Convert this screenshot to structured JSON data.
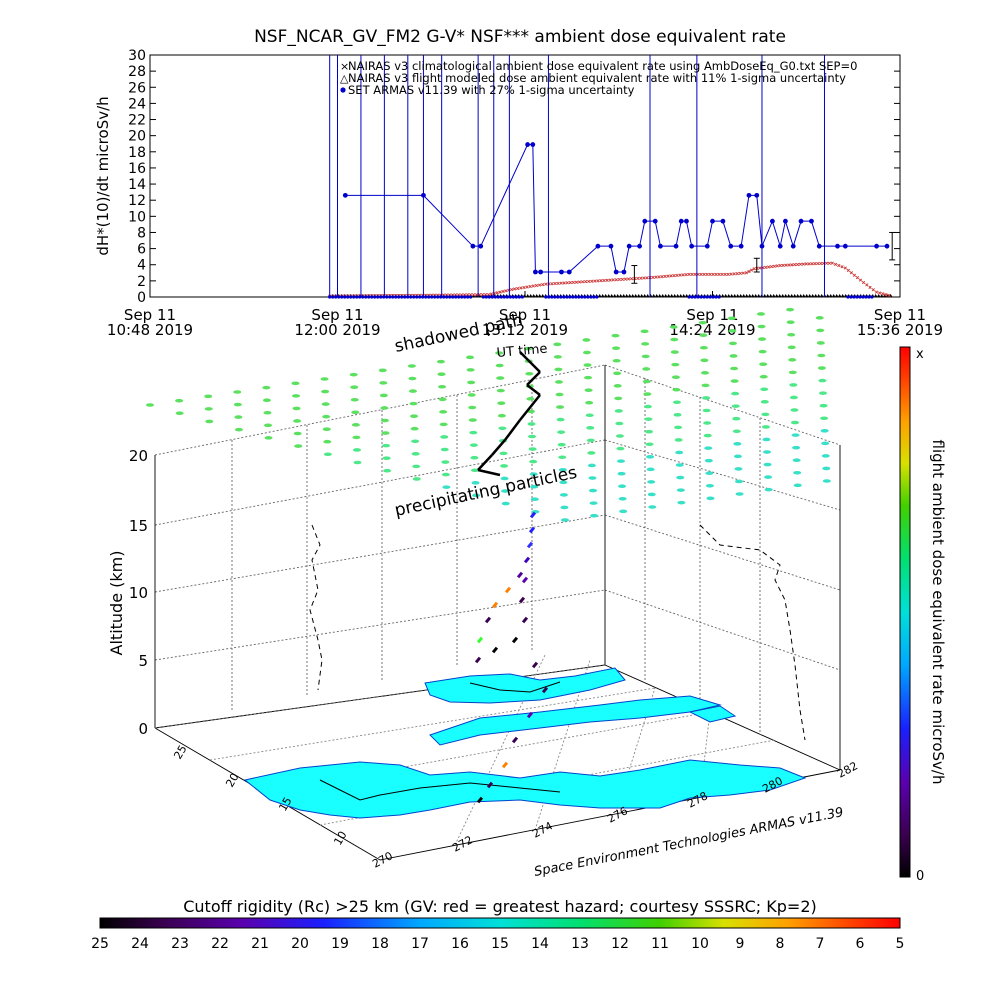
{
  "chart_data": [
    {
      "type": "line",
      "title": "NSF_NCAR_GV_FM2 G-V* NSF*** ambient dose equivalent rate",
      "ylabel": "dH*(10)/dt microSv/h",
      "xlabel": "",
      "ylim": [
        0,
        30
      ],
      "yticks": [
        0,
        2,
        4,
        6,
        8,
        10,
        12,
        14,
        16,
        18,
        20,
        22,
        24,
        26,
        28,
        30
      ],
      "x_tick_labels": [
        {
          "line1": "Sep 11",
          "line2": "10:48 2019"
        },
        {
          "line1": "Sep 11",
          "line2": "12:00 2019"
        },
        {
          "line1": "Sep 11",
          "line2": "13:12 2019"
        },
        {
          "line1": "Sep 11",
          "line2": "14:24 2019"
        },
        {
          "line1": "Sep 11",
          "line2": "15:36 2019"
        }
      ],
      "xrange_minutes_since_0000": [
        648,
        936
      ],
      "grid": false,
      "legend_position": "top-right",
      "legend": [
        "NAIRAS v3 climatological ambient dose equivalent rate using AmbDoseEq_G0.txt SEP=0",
        "NAIRAS v3 flight modeled dose ambient equivalent rate with 11% 1-sigma uncertainty",
        "SET ARMAS v11.39 with 27% 1-sigma uncertainty"
      ],
      "series_colors": [
        "#cc3333",
        "#000000",
        "#0000cc"
      ],
      "armas_spikes_time": [
        "11:57",
        "12:00",
        "12:09",
        "12:18",
        "12:27",
        "12:33",
        "12:40",
        "12:54",
        "13:00",
        "13:06",
        "13:21",
        "14:00",
        "14:18",
        "14:43",
        "15:07"
      ],
      "armas_points": [
        {
          "time": "12:03",
          "value": 12.6
        },
        {
          "time": "12:33",
          "value": 12.6
        },
        {
          "time": "12:52",
          "value": 6.3
        },
        {
          "time": "12:55",
          "value": 6.3
        },
        {
          "time": "13:13",
          "value": 18.9
        },
        {
          "time": "13:15",
          "value": 18.9
        },
        {
          "time": "13:16",
          "value": 3.1
        },
        {
          "time": "13:18",
          "value": 3.1
        },
        {
          "time": "13:26",
          "value": 3.1
        },
        {
          "time": "13:29",
          "value": 3.1
        },
        {
          "time": "13:40",
          "value": 6.3
        },
        {
          "time": "13:45",
          "value": 6.3
        },
        {
          "time": "13:47",
          "value": 3.1
        },
        {
          "time": "13:50",
          "value": 3.1
        },
        {
          "time": "13:52",
          "value": 6.3
        },
        {
          "time": "13:56",
          "value": 6.3
        },
        {
          "time": "13:58",
          "value": 9.4
        },
        {
          "time": "14:02",
          "value": 9.4
        },
        {
          "time": "14:04",
          "value": 6.3
        },
        {
          "time": "14:10",
          "value": 6.3
        },
        {
          "time": "14:12",
          "value": 9.4
        },
        {
          "time": "14:14",
          "value": 9.4
        },
        {
          "time": "14:16",
          "value": 6.3
        },
        {
          "time": "14:22",
          "value": 6.3
        },
        {
          "time": "14:24",
          "value": 9.4
        },
        {
          "time": "14:28",
          "value": 9.4
        },
        {
          "time": "14:31",
          "value": 6.3
        },
        {
          "time": "14:35",
          "value": 6.3
        },
        {
          "time": "14:38",
          "value": 12.6
        },
        {
          "time": "14:41",
          "value": 12.6
        },
        {
          "time": "14:43",
          "value": 6.3
        },
        {
          "time": "14:47",
          "value": 9.4
        },
        {
          "time": "14:50",
          "value": 6.3
        },
        {
          "time": "14:52",
          "value": 9.4
        },
        {
          "time": "14:55",
          "value": 6.3
        },
        {
          "time": "14:58",
          "value": 9.4
        },
        {
          "time": "15:02",
          "value": 9.4
        },
        {
          "time": "15:05",
          "value": 6.3
        },
        {
          "time": "15:12",
          "value": 6.3
        },
        {
          "time": "15:15",
          "value": 6.3
        },
        {
          "time": "15:27",
          "value": 6.3
        },
        {
          "time": "15:31",
          "value": 6.3
        }
      ],
      "armas_zero_ranges": [
        [
          "11:57",
          "12:52"
        ],
        [
          "12:56",
          "13:12"
        ],
        [
          "13:20",
          "13:40"
        ],
        [
          "14:15",
          "14:27"
        ],
        [
          "15:16",
          "15:26"
        ]
      ],
      "nairas_climatological": [
        {
          "time": "11:57",
          "value": 0.1
        },
        {
          "time": "12:58",
          "value": 0.3
        },
        {
          "time": "13:08",
          "value": 1.0
        },
        {
          "time": "13:20",
          "value": 1.6
        },
        {
          "time": "13:40",
          "value": 2.0
        },
        {
          "time": "14:00",
          "value": 2.4
        },
        {
          "time": "14:15",
          "value": 2.8
        },
        {
          "time": "14:30",
          "value": 2.8
        },
        {
          "time": "14:37",
          "value": 3.0
        },
        {
          "time": "14:40",
          "value": 3.5
        },
        {
          "time": "14:50",
          "value": 3.9
        },
        {
          "time": "15:00",
          "value": 4.1
        },
        {
          "time": "15:10",
          "value": 4.2
        },
        {
          "time": "15:15",
          "value": 3.6
        },
        {
          "time": "15:22",
          "value": 1.8
        },
        {
          "time": "15:27",
          "value": 0.6
        },
        {
          "time": "15:33",
          "value": 0.1
        }
      ],
      "nairas_flight": [
        {
          "time": "11:57",
          "value": 0.0
        },
        {
          "time": "15:33",
          "value": 0.0
        }
      ],
      "error_bars": [
        {
          "time": "13:54",
          "low": 1.7,
          "high": 3.9
        },
        {
          "time": "14:41",
          "low": 3.1,
          "high": 4.8
        },
        {
          "time": "15:33",
          "low": 4.6,
          "high": 8.0
        }
      ]
    },
    {
      "type": "scatter",
      "title": "flight ambient dose equivalent rate microSv/h",
      "ylabel": "Altitude (km)",
      "ylim": [
        0,
        20
      ],
      "zticks": [
        0,
        5,
        10,
        15,
        20
      ],
      "lat_ticks": [
        "10",
        "15",
        "20",
        "25"
      ],
      "lon_ticks": [
        "270",
        "272",
        "274",
        "276",
        "278",
        "280",
        "282"
      ],
      "colorbar_top_label": "x",
      "colorbar_bottom_label": "0",
      "annotations": [
        "shadowed path",
        "precipitating particles",
        "UT time"
      ],
      "credit": "Space Environment Technologies ARMAS v11.39"
    },
    {
      "type": "heatmap",
      "title": "Cutoff rigidity (Rc) >25 km (GV: red = greatest hazard; courtesy SSSRC; Kp=2)",
      "ticks": [
        "25",
        "24",
        "23",
        "22",
        "21",
        "20",
        "19",
        "18",
        "17",
        "16",
        "15",
        "14",
        "13",
        "12",
        "11",
        "10",
        "9",
        "8",
        "7",
        "6",
        "5"
      ]
    }
  ],
  "page": {
    "panel3d_labels": {
      "x_sep11": "Sep 11",
      "x_1312": "13:12 2019"
    }
  }
}
